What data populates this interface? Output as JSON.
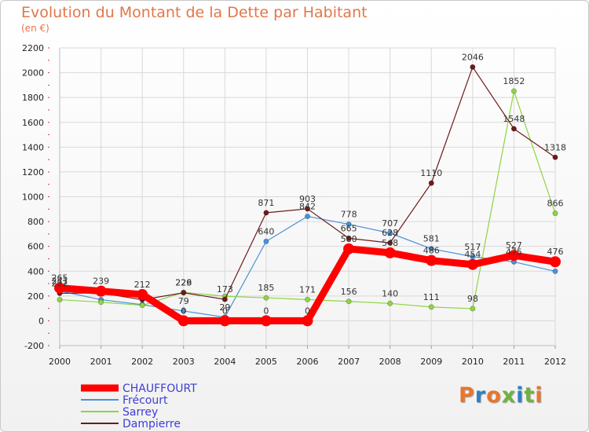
{
  "title": "Evolution du Montant de la Dette par Habitant",
  "subtitle": "(en €)",
  "logo": {
    "text": "Proxiti",
    "colors": [
      "#e8762b",
      "#2e7fc4",
      "#e8762b",
      "#6fb23e",
      "#2e7fc4",
      "#6fb23e",
      "#e8762b"
    ]
  },
  "chart_data": {
    "type": "line",
    "title": "Evolution du Montant de la Dette par Habitant",
    "subtitle": "(en €)",
    "x": [
      "2000",
      "2001",
      "2002",
      "2003",
      "2004",
      "2005",
      "2006",
      "2007",
      "2008",
      "2009",
      "2010",
      "2011",
      "2012"
    ],
    "ylim": [
      -200,
      2200
    ],
    "yticks": [
      -200,
      0,
      200,
      400,
      600,
      800,
      1000,
      1200,
      1400,
      1600,
      1800,
      2000,
      2200
    ],
    "grid": true,
    "legend_position": "bottom-left",
    "series": [
      {
        "name": "CHAUFFOURT",
        "color": "#ff0000",
        "values": [
          265,
          239,
          212,
          0,
          0,
          0,
          0,
          580,
          548,
          486,
          454,
          527,
          476
        ],
        "labels": [
          "265",
          "239",
          "212",
          "0",
          "0",
          "0",
          "0",
          "580",
          "548",
          "486",
          "454",
          "527",
          "476"
        ]
      },
      {
        "name": "Frécourt",
        "color": "#4a90d9",
        "values": [
          241,
          170,
          130,
          79,
          29,
          640,
          842,
          778,
          707,
          581,
          517,
          475,
          399
        ],
        "labels": [
          "241",
          "",
          "",
          "79",
          "29",
          "640",
          "842",
          "778",
          "707",
          "581",
          "517",
          "475",
          ""
        ]
      },
      {
        "name": "Sarrey",
        "color": "#8ed443",
        "values": [
          170,
          150,
          125,
          229,
          198,
          185,
          171,
          156,
          140,
          111,
          98,
          1852,
          866
        ],
        "labels": [
          "",
          "",
          "",
          "229",
          "",
          "185",
          "171",
          "156",
          "140",
          "111",
          "98",
          "1852",
          "866"
        ]
      },
      {
        "name": "Dampierre",
        "color": "#6e1a1a",
        "values": [
          222,
          224,
          170,
          226,
          173,
          871,
          903,
          665,
          628,
          1110,
          2046,
          1548,
          1318
        ],
        "labels": [
          "222",
          "",
          "",
          "226",
          "173",
          "871",
          "903",
          "665",
          "628",
          "1110",
          "2046",
          "1548",
          "1318"
        ]
      }
    ]
  }
}
